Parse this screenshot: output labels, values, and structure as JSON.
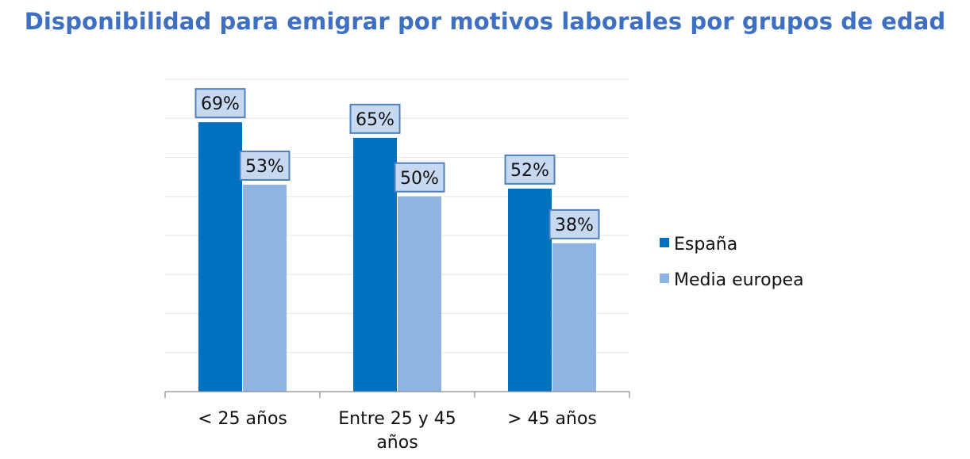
{
  "title": "Disponibilidad para emigrar por motivos laborales por grupos de edad",
  "chart_data": {
    "type": "bar",
    "title": "Disponibilidad para emigrar por motivos laborales por grupos de edad",
    "categories": [
      [
        "< 25 años"
      ],
      [
        "Entre 25 y 45",
        "años"
      ],
      [
        "> 45 años"
      ]
    ],
    "series": [
      {
        "name": "España",
        "color": "#0070c0",
        "values": [
          69,
          65,
          52
        ],
        "labels": [
          "69%",
          "65%",
          "52%"
        ]
      },
      {
        "name": "Media europea",
        "color": "#8eb4e3",
        "values": [
          53,
          50,
          38
        ],
        "labels": [
          "53%",
          "50%",
          "38%"
        ]
      }
    ],
    "ylim": [
      0,
      80
    ],
    "grid": true,
    "legend": "right",
    "label_box_fill": "#c6d9f1",
    "label_box_stroke": "#4f81bd"
  }
}
